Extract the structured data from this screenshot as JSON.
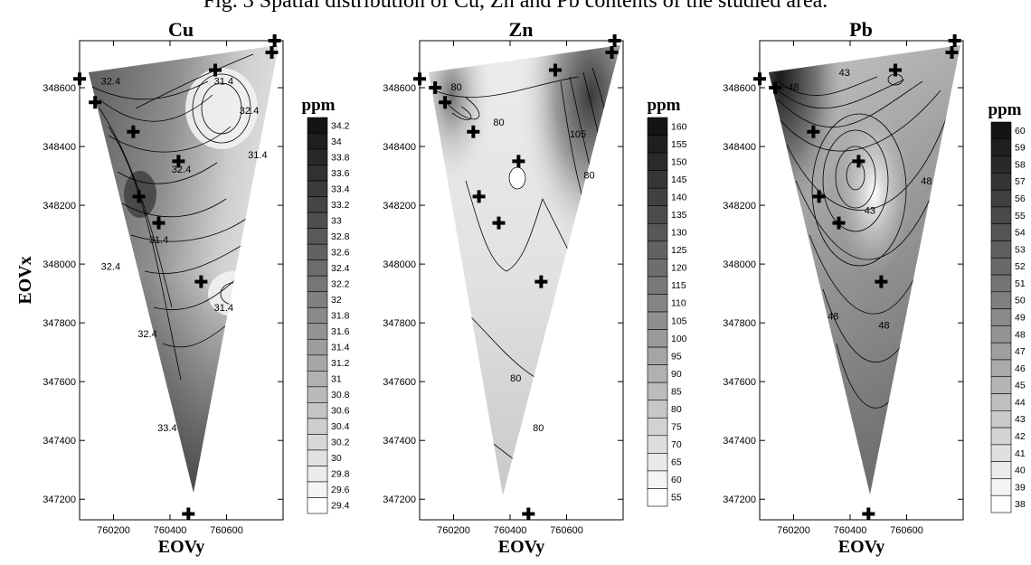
{
  "figure_title": "Fig. 3 Spatial distribution of Cu, Zn and Pb contents of the studied area.",
  "chart_data": [
    {
      "type": "heatmap",
      "title": "Cu",
      "xlabel": "EOVy",
      "ylabel": "EOVx",
      "unit": "ppm",
      "xlim": [
        760080,
        760800
      ],
      "ylim": [
        347130,
        348760
      ],
      "x_ticks": [
        760200,
        760400,
        760600
      ],
      "x_tick_labels": [
        "760200",
        "760400",
        "760600"
      ],
      "y_ticks": [
        347200,
        347400,
        347600,
        347800,
        348000,
        348200,
        348400,
        348600
      ],
      "y_tick_labels": [
        "347200",
        "347400",
        "347600",
        "347800",
        "348000",
        "348200",
        "348400",
        "348600"
      ],
      "colorbar_levels": [
        "34.2",
        "34",
        "33.8",
        "33.6",
        "33.4",
        "33.2",
        "33",
        "32.8",
        "32.6",
        "32.4",
        "32.2",
        "32",
        "31.8",
        "31.6",
        "31.4",
        "31.2",
        "31",
        "30.8",
        "30.6",
        "30.4",
        "30.2",
        "30",
        "29.8",
        "29.6",
        "29.4"
      ],
      "contour_labels": [
        {
          "text": "32.4",
          "x": 760190,
          "y": 348620
        },
        {
          "text": "31.4",
          "x": 760590,
          "y": 348620
        },
        {
          "text": "32.4",
          "x": 760680,
          "y": 348520
        },
        {
          "text": "31.4",
          "x": 760710,
          "y": 348370
        },
        {
          "text": "32.4",
          "x": 760440,
          "y": 348320
        },
        {
          "text": "31.4",
          "x": 760360,
          "y": 348080
        },
        {
          "text": "32.4",
          "x": 760190,
          "y": 347990
        },
        {
          "text": "31.4",
          "x": 760590,
          "y": 347850
        },
        {
          "text": "32.4",
          "x": 760320,
          "y": 347760
        },
        {
          "text": "33.4",
          "x": 760390,
          "y": 347440
        }
      ],
      "sample_points": [
        {
          "x": 760080,
          "y": 348630
        },
        {
          "x": 760135,
          "y": 348550
        },
        {
          "x": 760270,
          "y": 348450
        },
        {
          "x": 760430,
          "y": 348350
        },
        {
          "x": 760290,
          "y": 348230
        },
        {
          "x": 760360,
          "y": 348140
        },
        {
          "x": 760510,
          "y": 347940
        },
        {
          "x": 760560,
          "y": 348660
        },
        {
          "x": 760770,
          "y": 348760
        },
        {
          "x": 760760,
          "y": 348720
        },
        {
          "x": 760465,
          "y": 347150
        }
      ]
    },
    {
      "type": "heatmap",
      "title": "Zn",
      "xlabel": "EOVy",
      "ylabel": "",
      "unit": "ppm",
      "xlim": [
        760080,
        760800
      ],
      "ylim": [
        347130,
        348760
      ],
      "x_ticks": [
        760200,
        760400,
        760600
      ],
      "x_tick_labels": [
        "760200",
        "760400",
        "760600"
      ],
      "y_ticks": [
        347200,
        347400,
        347600,
        347800,
        348000,
        348200,
        348400,
        348600
      ],
      "y_tick_labels": [
        "347200",
        "347400",
        "347600",
        "347800",
        "348000",
        "348200",
        "348400",
        "348600"
      ],
      "colorbar_levels": [
        "160",
        "155",
        "150",
        "145",
        "140",
        "135",
        "130",
        "125",
        "120",
        "115",
        "110",
        "105",
        "100",
        "95",
        "90",
        "85",
        "80",
        "75",
        "70",
        "65",
        "60",
        "55"
      ],
      "contour_labels": [
        {
          "text": "80",
          "x": 760210,
          "y": 348600
        },
        {
          "text": "80",
          "x": 760360,
          "y": 348480
        },
        {
          "text": "105",
          "x": 760640,
          "y": 348440
        },
        {
          "text": "80",
          "x": 760680,
          "y": 348300
        },
        {
          "text": "80",
          "x": 760420,
          "y": 347610
        },
        {
          "text": "80",
          "x": 760500,
          "y": 347440
        }
      ],
      "sample_points": [
        {
          "x": 760080,
          "y": 348630
        },
        {
          "x": 760135,
          "y": 348600
        },
        {
          "x": 760170,
          "y": 348550
        },
        {
          "x": 760270,
          "y": 348450
        },
        {
          "x": 760430,
          "y": 348350
        },
        {
          "x": 760290,
          "y": 348230
        },
        {
          "x": 760360,
          "y": 348140
        },
        {
          "x": 760510,
          "y": 347940
        },
        {
          "x": 760560,
          "y": 348660
        },
        {
          "x": 760770,
          "y": 348760
        },
        {
          "x": 760760,
          "y": 348720
        },
        {
          "x": 760465,
          "y": 347150
        }
      ]
    },
    {
      "type": "heatmap",
      "title": "Pb",
      "xlabel": "EOVy",
      "ylabel": "",
      "unit": "ppm",
      "xlim": [
        760080,
        760800
      ],
      "ylim": [
        347130,
        348760
      ],
      "x_ticks": [
        760200,
        760400,
        760600
      ],
      "x_tick_labels": [
        "760200",
        "760400",
        "760600"
      ],
      "y_ticks": [
        347200,
        347400,
        347600,
        347800,
        348000,
        348200,
        348400,
        348600
      ],
      "y_tick_labels": [
        "347200",
        "347400",
        "347600",
        "347800",
        "348000",
        "348200",
        "348400",
        "348600"
      ],
      "colorbar_levels": [
        "60",
        "59",
        "58",
        "57",
        "56",
        "55",
        "54",
        "53",
        "52",
        "51",
        "50",
        "49",
        "48",
        "47",
        "46",
        "45",
        "44",
        "43",
        "42",
        "41",
        "40",
        "39",
        "38"
      ],
      "contour_labels": [
        {
          "text": "43",
          "x": 760380,
          "y": 348650
        },
        {
          "text": "48",
          "x": 760200,
          "y": 348600
        },
        {
          "text": "43",
          "x": 760470,
          "y": 348180
        },
        {
          "text": "48",
          "x": 760670,
          "y": 348280
        },
        {
          "text": "48",
          "x": 760340,
          "y": 347820
        },
        {
          "text": "48",
          "x": 760520,
          "y": 347790
        }
      ],
      "sample_points": [
        {
          "x": 760080,
          "y": 348630
        },
        {
          "x": 760135,
          "y": 348600
        },
        {
          "x": 760270,
          "y": 348450
        },
        {
          "x": 760430,
          "y": 348350
        },
        {
          "x": 760290,
          "y": 348230
        },
        {
          "x": 760360,
          "y": 348140
        },
        {
          "x": 760510,
          "y": 347940
        },
        {
          "x": 760560,
          "y": 348660
        },
        {
          "x": 760770,
          "y": 348760
        },
        {
          "x": 760760,
          "y": 348720
        },
        {
          "x": 760465,
          "y": 347150
        }
      ]
    }
  ]
}
